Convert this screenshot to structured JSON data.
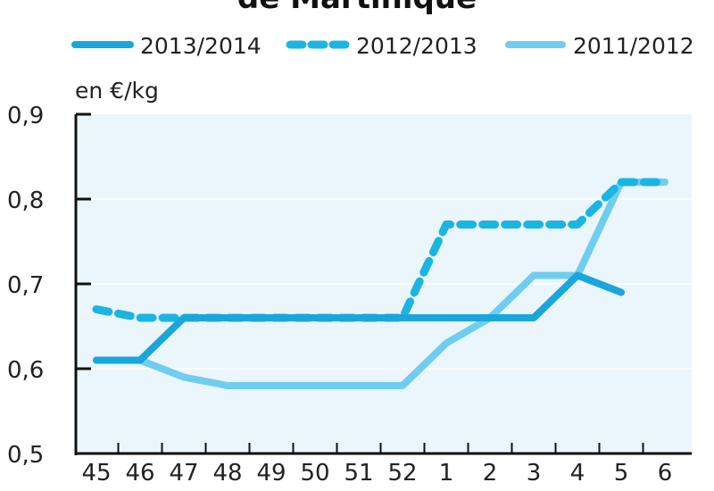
{
  "chart_data": {
    "type": "line",
    "title": "de Martinique",
    "unit_label": "en €/kg",
    "categories": [
      "45",
      "46",
      "47",
      "48",
      "49",
      "50",
      "51",
      "52",
      "1",
      "2",
      "3",
      "4",
      "5",
      "6"
    ],
    "ylim": [
      0.5,
      0.9
    ],
    "yticks": [
      "0,5",
      "0,6",
      "0,7",
      "0,8",
      "0,9"
    ],
    "grid": true,
    "legend_position": "top",
    "series": [
      {
        "name": "2013/2014",
        "style": "solid",
        "color": "#1aa6dc",
        "values": [
          0.61,
          0.61,
          0.66,
          0.66,
          0.66,
          0.66,
          0.66,
          0.66,
          0.66,
          0.66,
          0.66,
          0.71,
          0.69,
          null
        ]
      },
      {
        "name": "2012/2013",
        "style": "dashed",
        "color": "#1bb5e2",
        "values": [
          0.67,
          0.66,
          0.66,
          0.66,
          0.66,
          0.66,
          0.66,
          0.66,
          0.77,
          0.77,
          0.77,
          0.77,
          0.82,
          0.82
        ]
      },
      {
        "name": "2011/2012",
        "style": "solid",
        "color": "#6fcdf0",
        "values": [
          0.61,
          0.61,
          0.59,
          0.58,
          0.58,
          0.58,
          0.58,
          0.58,
          0.63,
          0.66,
          0.71,
          0.71,
          0.82,
          0.82
        ]
      }
    ]
  }
}
